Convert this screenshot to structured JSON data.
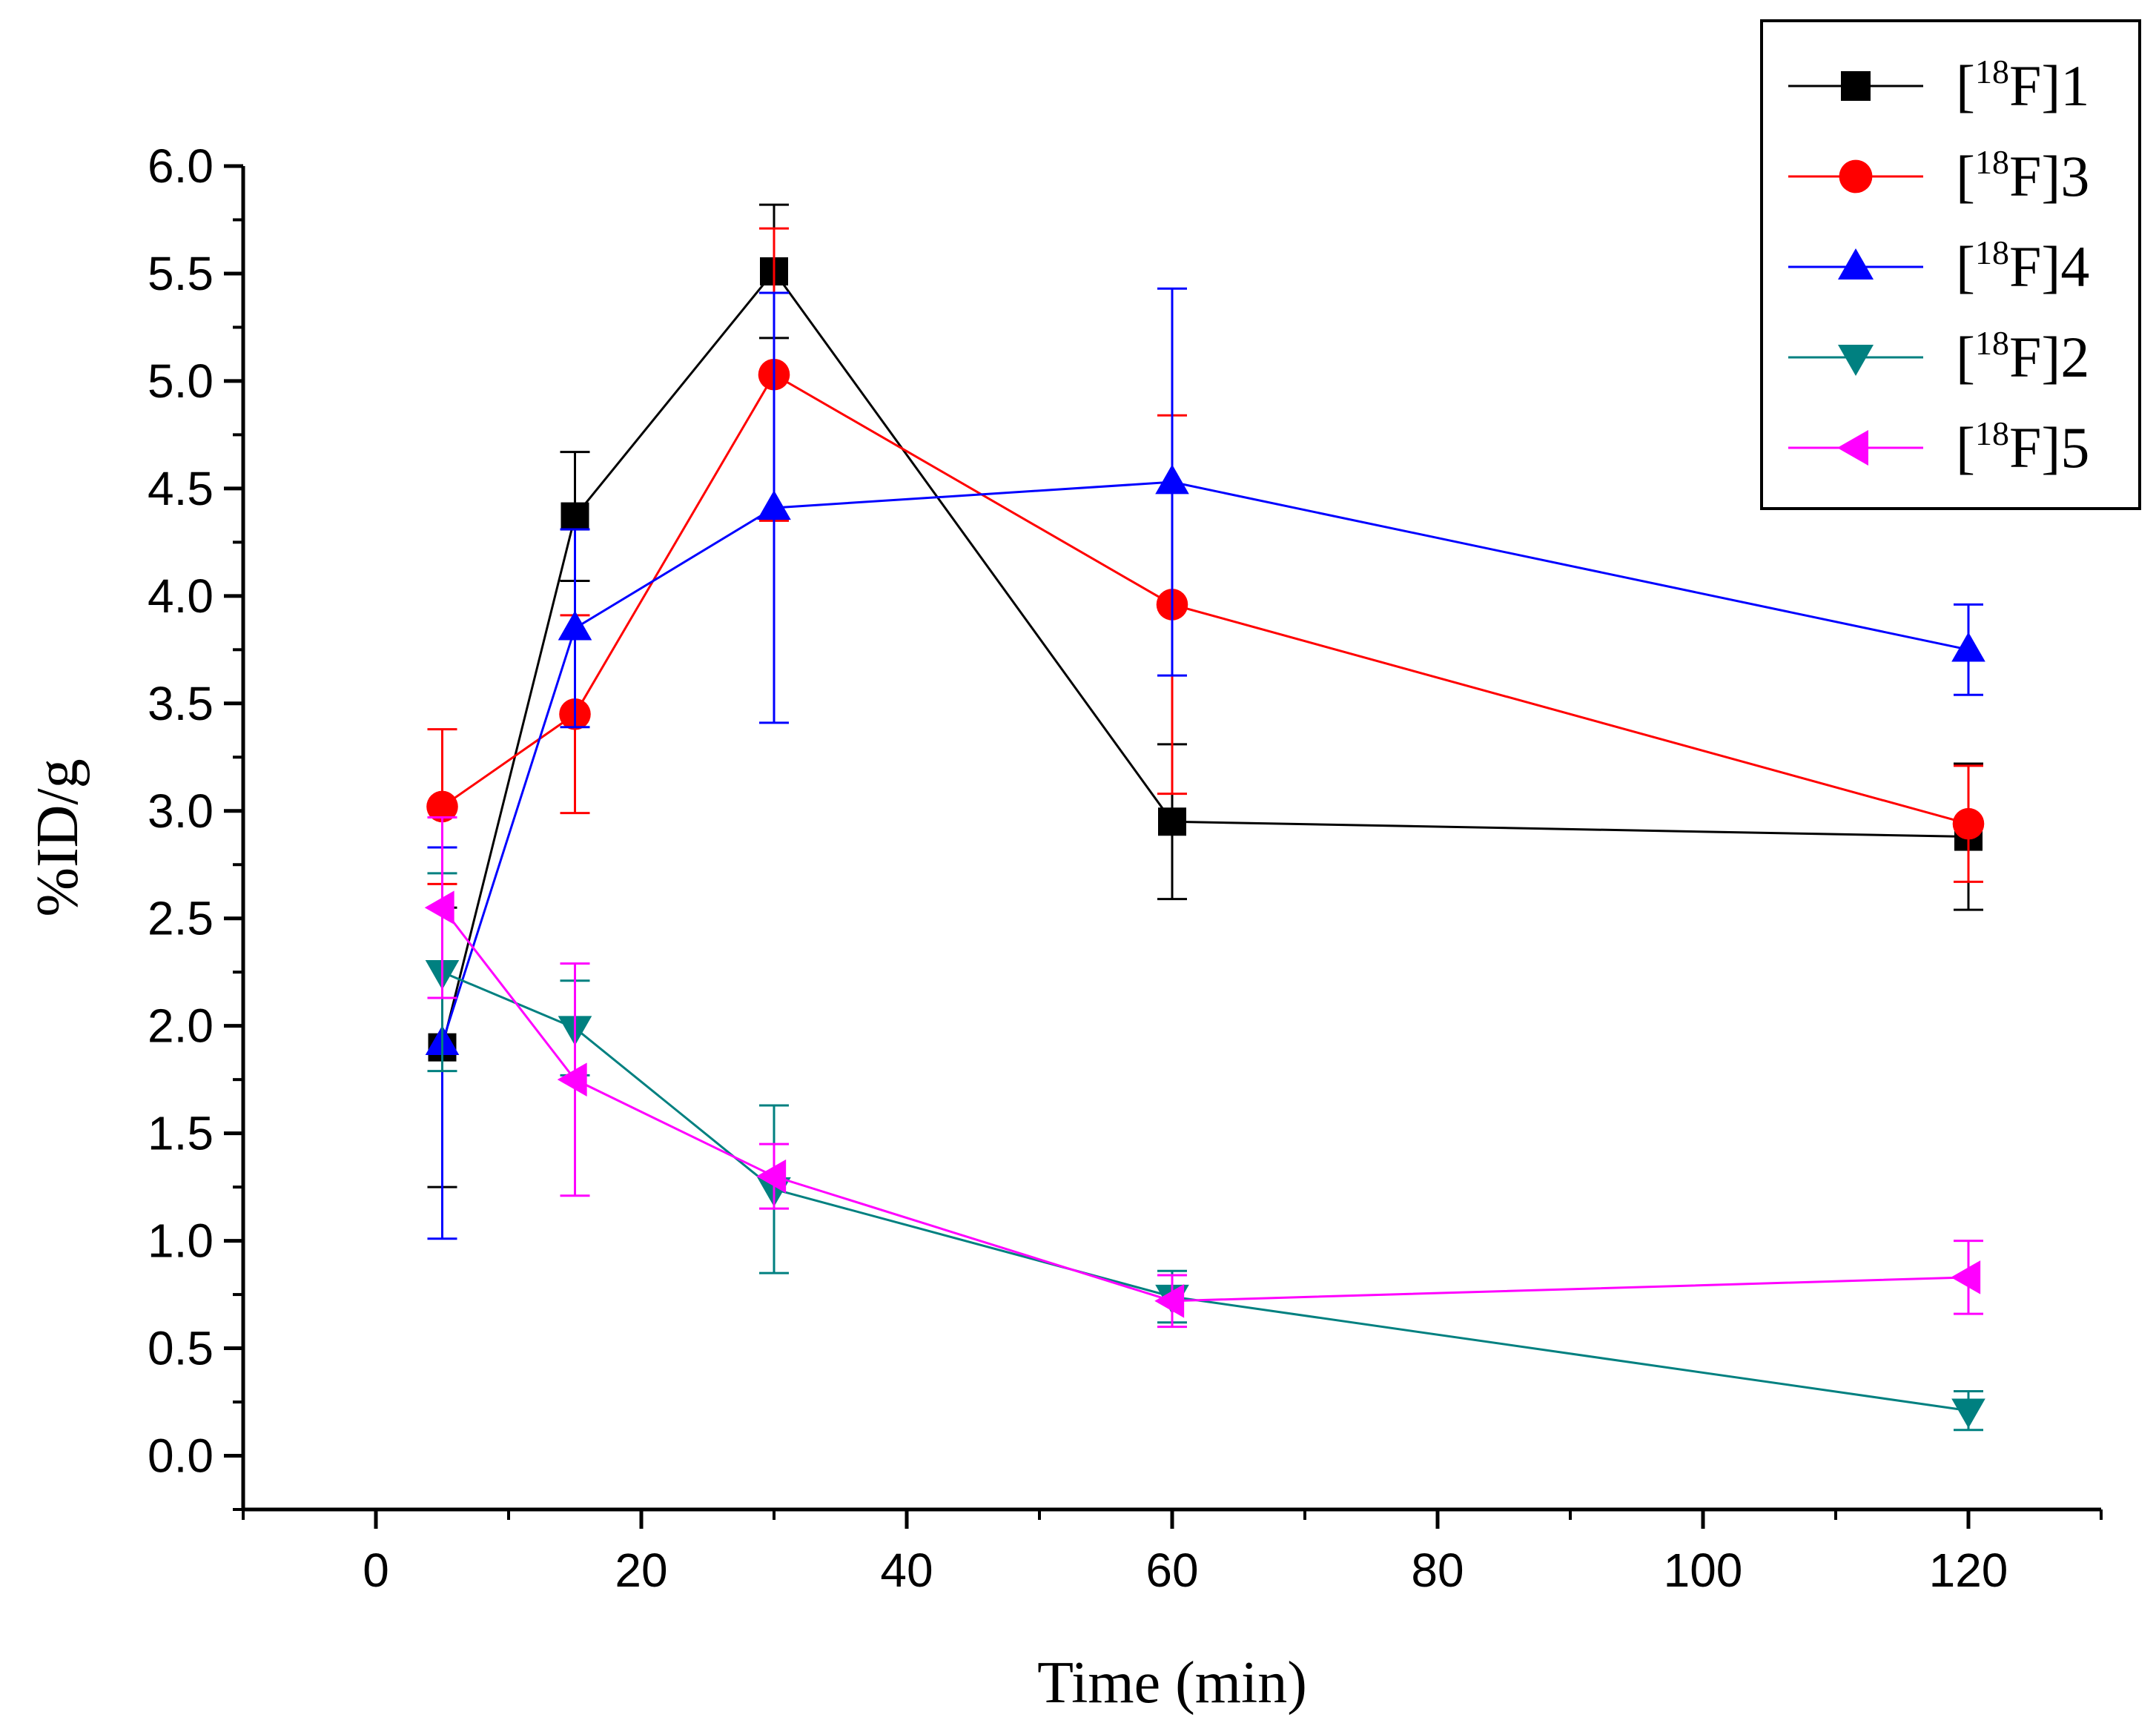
{
  "chart_data": {
    "type": "line",
    "xlabel": "Time (min)",
    "ylabel": "%ID/g",
    "xlim": [
      -10,
      130
    ],
    "ylim": [
      -0.25,
      6.0
    ],
    "xticks": [
      "0",
      "20",
      "40",
      "60",
      "80",
      "100",
      "120"
    ],
    "yticks": [
      "0.0",
      "0.5",
      "1.0",
      "1.5",
      "2.0",
      "2.5",
      "3.0",
      "3.5",
      "4.0",
      "4.5",
      "5.0",
      "5.5",
      "6.0"
    ],
    "legend_position": "top-right",
    "grid": false,
    "x": [
      5,
      15,
      30,
      60,
      120
    ],
    "series": [
      {
        "name": "[18F]1",
        "legend_prefix": "[",
        "legend_sup": "18",
        "legend_suffix": "F]1",
        "color": "#000000",
        "marker": "square",
        "values": [
          1.9,
          4.37,
          5.51,
          2.95,
          2.88
        ],
        "errors": [
          0.65,
          0.3,
          0.31,
          0.36,
          0.34
        ]
      },
      {
        "name": "[18F]3",
        "legend_prefix": "[",
        "legend_sup": "18",
        "legend_suffix": "F]3",
        "color": "#ff0000",
        "marker": "circle",
        "values": [
          3.02,
          3.45,
          5.03,
          3.96,
          2.94
        ],
        "errors": [
          0.36,
          0.46,
          0.68,
          0.88,
          0.27
        ]
      },
      {
        "name": "[18F]4",
        "legend_prefix": "[",
        "legend_sup": "18",
        "legend_suffix": "F]4",
        "color": "#0000ff",
        "marker": "triangle-up",
        "values": [
          1.92,
          3.85,
          4.41,
          4.53,
          3.75
        ],
        "errors": [
          0.91,
          0.46,
          1.0,
          0.9,
          0.21
        ]
      },
      {
        "name": "[18F]2",
        "legend_prefix": "[",
        "legend_sup": "18",
        "legend_suffix": "F]2",
        "color": "#008080",
        "marker": "triangle-down",
        "values": [
          2.25,
          1.99,
          1.24,
          0.74,
          0.21
        ],
        "errors": [
          0.46,
          0.22,
          0.39,
          0.12,
          0.09
        ]
      },
      {
        "name": "[18F]5",
        "legend_prefix": "[",
        "legend_sup": "18",
        "legend_suffix": "F]5",
        "color": "#ff00ff",
        "marker": "triangle-left",
        "values": [
          2.55,
          1.75,
          1.3,
          0.72,
          0.83
        ],
        "errors": [
          0.42,
          0.54,
          0.15,
          0.12,
          0.17
        ]
      }
    ]
  }
}
